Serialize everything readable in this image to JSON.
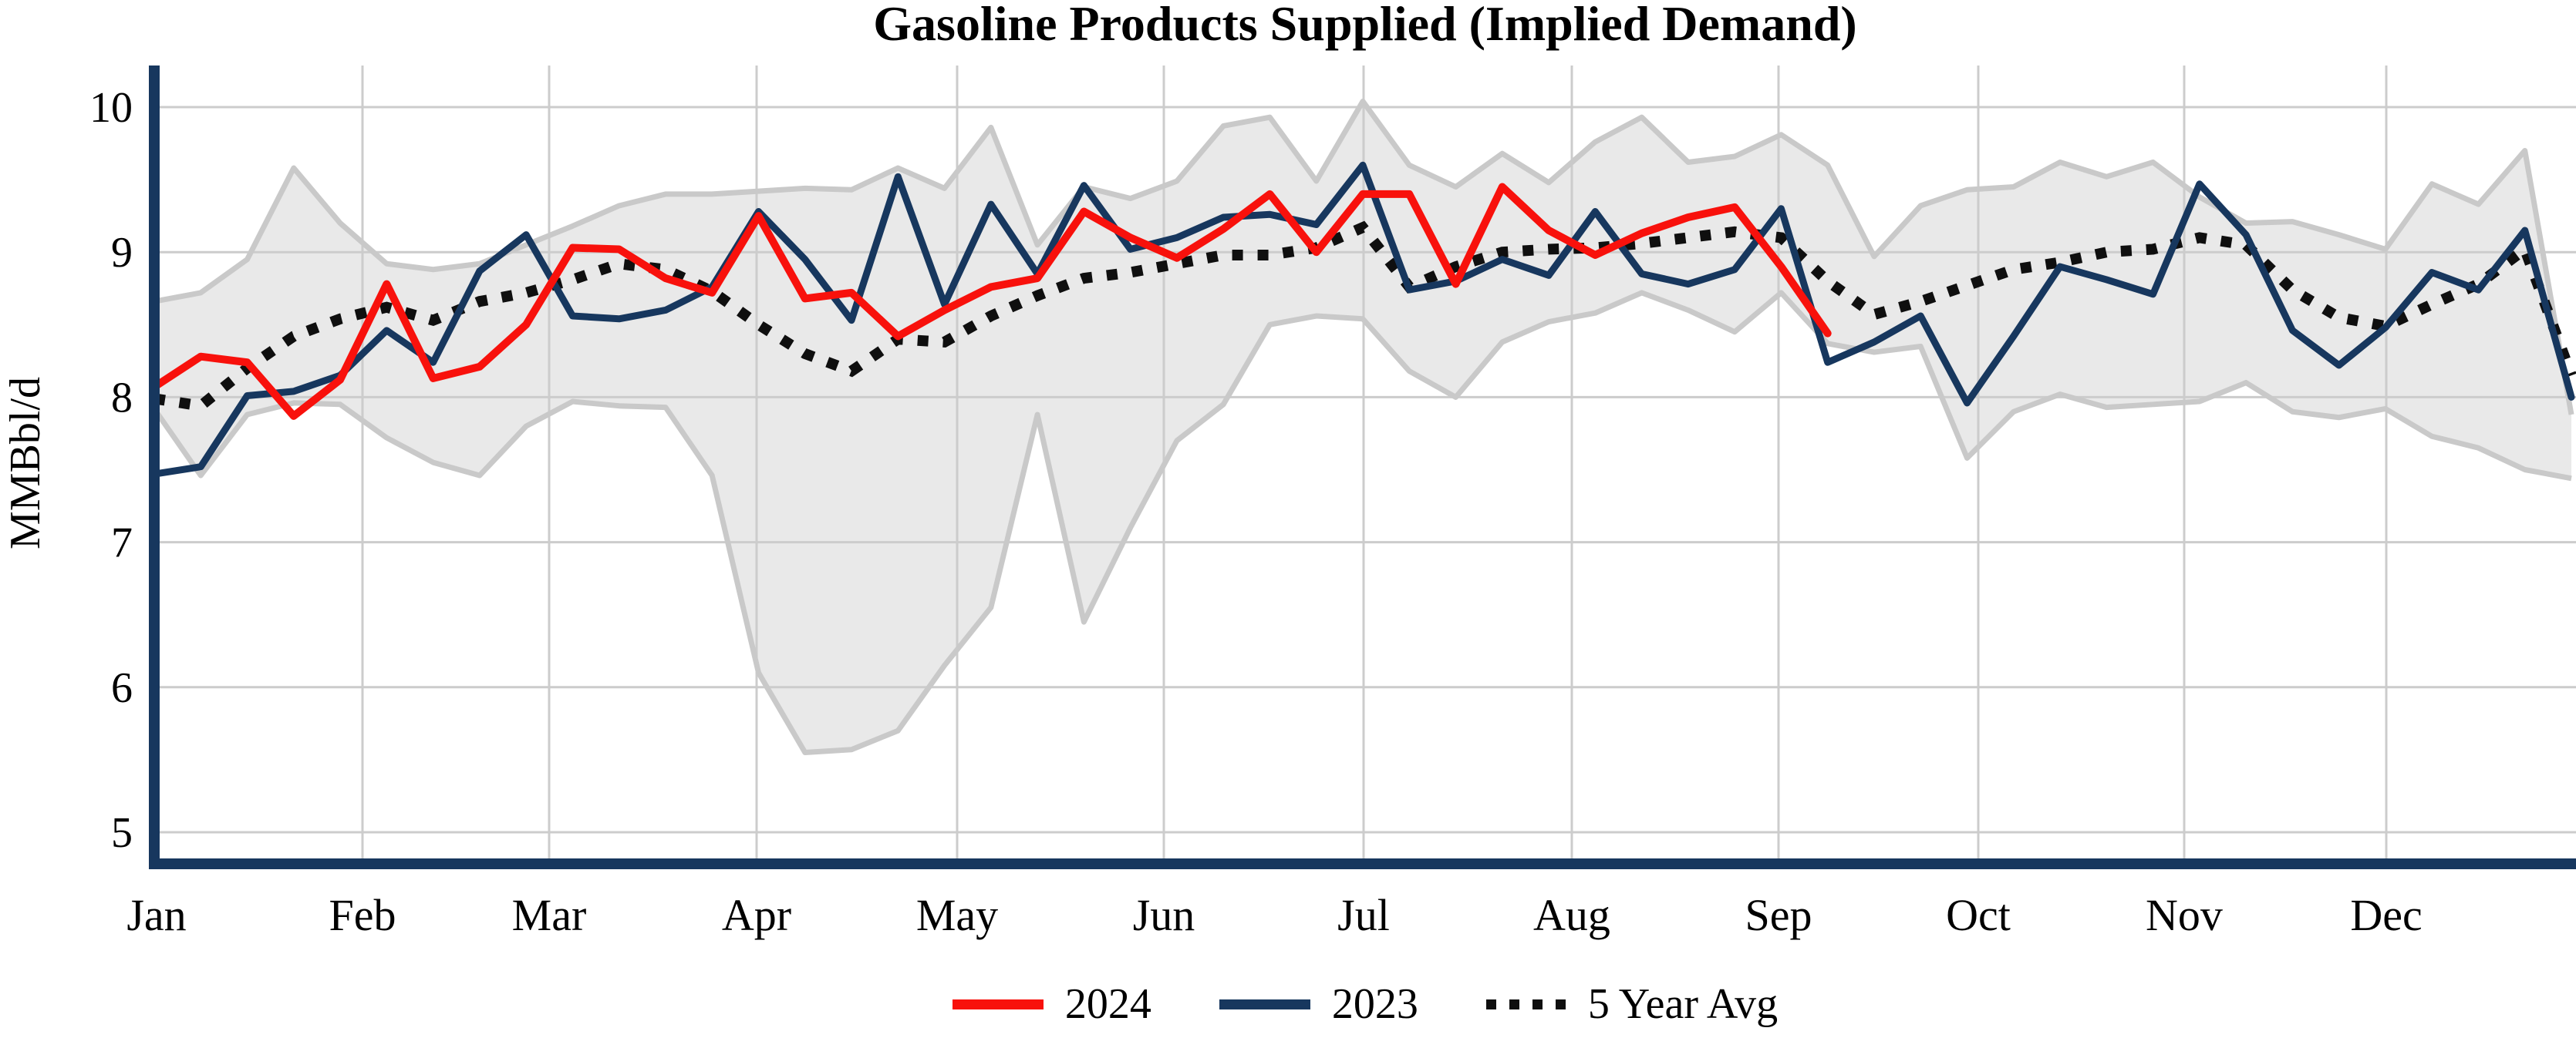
{
  "title": "Gasoline Products Supplied (Implied Demand)",
  "y_axis": {
    "label": "MMBbl/d",
    "ticks": [
      "10",
      "9",
      "8",
      "7",
      "6",
      "5"
    ],
    "min": 5,
    "max": 10
  },
  "x_axis": {
    "months": [
      "Jan",
      "Feb",
      "Mar",
      "Apr",
      "May",
      "Jun",
      "Jul",
      "Aug",
      "Sep",
      "Oct",
      "Nov",
      "Dec"
    ]
  },
  "legend": [
    {
      "label": "2024",
      "style": "solid",
      "color": "#f8110c"
    },
    {
      "label": "2023",
      "style": "solid",
      "color": "#17375e"
    },
    {
      "label": "5 Year Avg",
      "style": "dotted",
      "color": "#0f0f0f"
    }
  ],
  "colors": {
    "series_2024": "#f8110c",
    "series_2023": "#17375e",
    "series_5yr_avg": "#0f0f0f",
    "band_fill": "#e9e9e9",
    "band_edge": "#c9c9c9",
    "gridline": "#cccccc",
    "axis_spine": "#17375e",
    "text": "#000000"
  },
  "chart_data": {
    "type": "line",
    "title": "Gasoline Products Supplied (Implied Demand)",
    "xlabel": "",
    "ylabel": "MMBbl/d",
    "ylim": [
      5,
      10
    ],
    "x_description": "53 weekly points spanning Jan 1 through Dec 31; month gridlines at month starts",
    "legend_position": "bottom-center",
    "grid": true,
    "series": [
      {
        "name": "2024",
        "color": "#f8110c",
        "style": "solid",
        "values": [
          8.07,
          8.28,
          8.24,
          7.87,
          8.12,
          8.78,
          8.13,
          8.21,
          8.5,
          9.03,
          9.02,
          8.82,
          8.72,
          9.25,
          8.68,
          8.72,
          8.42,
          8.6,
          8.76,
          8.82,
          9.28,
          9.1,
          8.96,
          9.16,
          9.4,
          9.0,
          9.4,
          9.4,
          8.78,
          9.45,
          9.15,
          8.98,
          9.13,
          9.24,
          9.31,
          8.9,
          8.44
        ]
      },
      {
        "name": "2023",
        "color": "#17375e",
        "style": "solid",
        "values": [
          7.47,
          7.52,
          8.01,
          8.04,
          8.15,
          8.46,
          8.24,
          8.87,
          9.12,
          8.56,
          8.54,
          8.6,
          8.76,
          9.28,
          8.95,
          8.53,
          9.52,
          8.64,
          9.33,
          8.85,
          9.46,
          9.02,
          9.1,
          9.24,
          9.26,
          9.19,
          9.6,
          8.74,
          8.8,
          8.95,
          8.84,
          9.28,
          8.85,
          8.78,
          8.88,
          9.3,
          8.24,
          8.38,
          8.56,
          7.96,
          8.42,
          8.9,
          8.81,
          8.71,
          9.47,
          9.12,
          8.46,
          8.22,
          8.48,
          8.86,
          8.74,
          9.15,
          8.0
        ]
      },
      {
        "name": "5 Year Avg",
        "color": "#0f0f0f",
        "style": "dotted",
        "values": [
          7.99,
          7.94,
          8.2,
          8.42,
          8.54,
          8.62,
          8.53,
          8.66,
          8.72,
          8.81,
          8.92,
          8.88,
          8.73,
          8.5,
          8.3,
          8.18,
          8.4,
          8.38,
          8.56,
          8.7,
          8.82,
          8.86,
          8.92,
          8.98,
          8.98,
          9.03,
          9.17,
          8.76,
          8.9,
          9.0,
          9.02,
          9.03,
          9.06,
          9.1,
          9.14,
          9.1,
          8.8,
          8.57,
          8.66,
          8.77,
          8.88,
          8.93,
          9.0,
          9.02,
          9.1,
          9.05,
          8.74,
          8.55,
          8.49,
          8.64,
          8.78,
          9.02,
          8.15
        ]
      }
    ],
    "band": {
      "name": "5 Year Range",
      "fill": "#e9e9e9",
      "edge": "#c9c9c9",
      "upper": [
        8.66,
        8.72,
        8.95,
        9.58,
        9.2,
        8.92,
        8.88,
        8.92,
        9.05,
        9.18,
        9.32,
        9.4,
        9.4,
        9.42,
        9.44,
        9.43,
        9.58,
        9.44,
        9.86,
        9.05,
        9.45,
        9.37,
        9.49,
        9.87,
        9.93,
        9.49,
        10.04,
        9.6,
        9.45,
        9.68,
        9.48,
        9.76,
        9.93,
        9.62,
        9.66,
        9.81,
        9.6,
        8.97,
        9.32,
        9.43,
        9.45,
        9.62,
        9.52,
        9.62,
        9.38,
        9.2,
        9.21,
        9.12,
        9.02,
        9.47,
        9.33,
        9.7,
        7.88
      ],
      "lower": [
        7.92,
        7.46,
        7.88,
        7.96,
        7.95,
        7.72,
        7.55,
        7.46,
        7.8,
        7.97,
        7.94,
        7.93,
        7.46,
        6.1,
        5.55,
        5.57,
        5.7,
        6.15,
        6.55,
        7.88,
        6.45,
        7.1,
        7.7,
        7.95,
        8.5,
        8.56,
        8.54,
        8.18,
        8.0,
        8.38,
        8.52,
        8.58,
        8.72,
        8.6,
        8.45,
        8.72,
        8.37,
        8.31,
        8.35,
        7.58,
        7.9,
        8.02,
        7.93,
        7.95,
        7.97,
        8.1,
        7.9,
        7.86,
        7.92,
        7.73,
        7.65,
        7.5,
        7.44
      ]
    }
  }
}
